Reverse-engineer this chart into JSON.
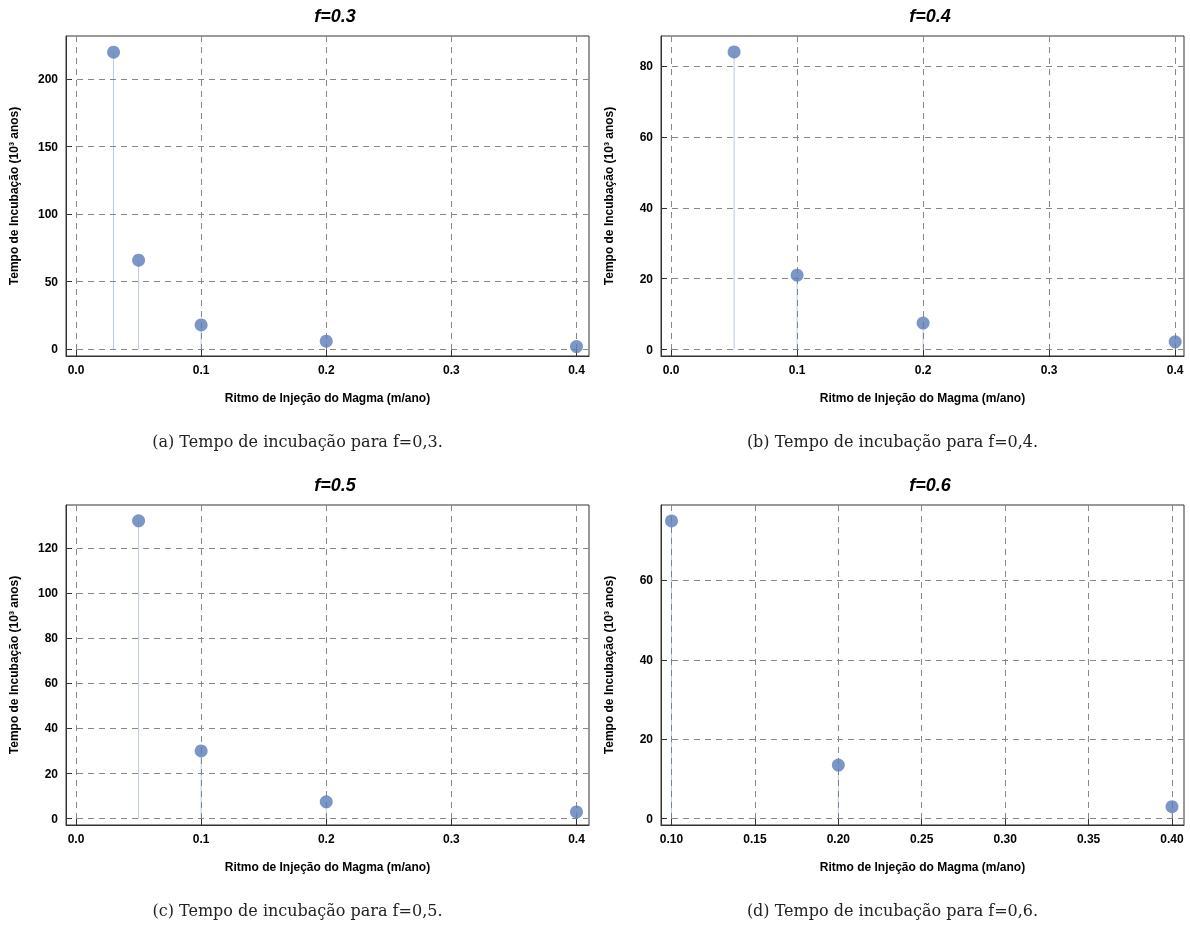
{
  "chart_data": [
    {
      "type": "lollipop",
      "title": "f=0.3",
      "xlabel": "Ritmo de Injeção do Magma (m/ano)",
      "ylabel": "Tempo de Incubação (10³ anos)",
      "annotations": [
        "(a) Tempo de incubação para f=0,3."
      ],
      "x": [
        0.03,
        0.05,
        0.1,
        0.2,
        0.4
      ],
      "values": [
        220,
        66,
        18,
        6,
        2
      ],
      "color": "#5b7db8",
      "marker": "circle",
      "grid": true,
      "line_style": "dashed",
      "xlim": [
        -0.008,
        0.41
      ],
      "xticks": [
        {
          "value": 0,
          "label": "0.0"
        },
        0.1,
        0.2,
        0.3,
        0.4
      ],
      "ylim": [
        -5,
        232
      ],
      "yticks": [
        0,
        50,
        100,
        150,
        200
      ]
    },
    {
      "type": "lollipop",
      "title": "f=0.4",
      "xlabel": "Ritmo de Injeção do Magma (m/ano)",
      "ylabel": "Tempo de Incubação (10³ anos)",
      "annotations": [
        "(b) Tempo de incubação para f=0,4."
      ],
      "x": [
        0.05,
        0.1,
        0.2,
        0.4
      ],
      "values": [
        84,
        21,
        7.5,
        2.2
      ],
      "color": "#5b7db8",
      "marker": "circle",
      "grid": true,
      "line_style": "dashed",
      "xlim": [
        -0.008,
        0.407
      ],
      "xticks": [
        {
          "value": 0,
          "label": "0.0"
        },
        0.1,
        0.2,
        0.3,
        0.4
      ],
      "ylim": [
        -1.8,
        88.5
      ],
      "yticks": [
        0,
        20,
        40,
        60,
        80
      ]
    },
    {
      "type": "lollipop",
      "title": "f=0.5",
      "xlabel": "Ritmo de Injeção do Magma (m/ano)",
      "ylabel": "Tempo de Incubação (10³ anos)",
      "annotations": [
        "(c) Tempo de incubação para f=0,5."
      ],
      "x": [
        0.05,
        0.1,
        0.2,
        0.4
      ],
      "values": [
        132,
        30,
        7.5,
        3
      ],
      "color": "#5b7db8",
      "marker": "circle",
      "grid": true,
      "line_style": "dashed",
      "xlim": [
        -0.008,
        0.41
      ],
      "xticks": [
        {
          "value": 0,
          "label": "0.0"
        },
        0.1,
        0.2,
        0.3,
        0.4
      ],
      "ylim": [
        -2.8,
        139
      ],
      "yticks": [
        0,
        20,
        40,
        60,
        80,
        100,
        120
      ]
    },
    {
      "type": "lollipop",
      "title": "f=0.6",
      "xlabel": "Ritmo de Injeção do Magma (m/ano)",
      "ylabel": "Tempo de Incubação (10³ anos)",
      "annotations": [
        "(d) Tempo de incubação para f=0,6."
      ],
      "x": [
        0.1,
        0.2,
        0.4
      ],
      "values": [
        75,
        13.5,
        3
      ],
      "color": "#5b7db8",
      "marker": "circle",
      "grid": true,
      "line_style": "dashed",
      "xlim": [
        0.0937,
        0.4072
      ],
      "xticks": [
        {
          "value": 0.1,
          "label": "0.10"
        },
        {
          "value": 0.15,
          "label": "0.15"
        },
        {
          "value": 0.2,
          "label": "0.20"
        },
        {
          "value": 0.25,
          "label": "0.25"
        },
        {
          "value": 0.3,
          "label": "0.30"
        },
        {
          "value": 0.35,
          "label": "0.35"
        },
        {
          "value": 0.4,
          "label": "0.40"
        }
      ],
      "ylim": [
        -1.6,
        79
      ],
      "yticks": [
        0,
        20,
        40,
        60
      ]
    }
  ]
}
